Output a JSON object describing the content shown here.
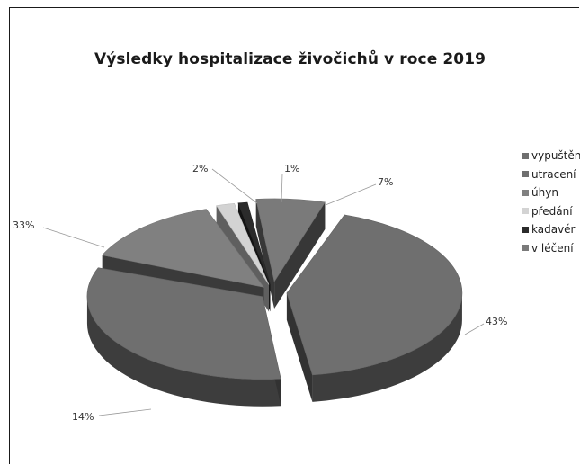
{
  "chart_data": {
    "type": "pie",
    "title": "Výsledky hospitalizace živočichů v roce 2019",
    "categories": [
      "vypuštění",
      "utracení",
      "úhyn",
      "předání",
      "kadavér",
      "v léčení"
    ],
    "values": [
      43,
      33,
      14,
      2,
      1,
      7
    ],
    "data_labels": [
      "43%",
      "33%",
      "14%",
      "2%",
      "1%",
      "7%"
    ],
    "colors": [
      "#6f6f6f",
      "#6f6f6f",
      "#808080",
      "#d3d3d3",
      "#2b2b2b",
      "#7a7a7a"
    ],
    "legend_position": "right",
    "style": "3d-exploded"
  }
}
